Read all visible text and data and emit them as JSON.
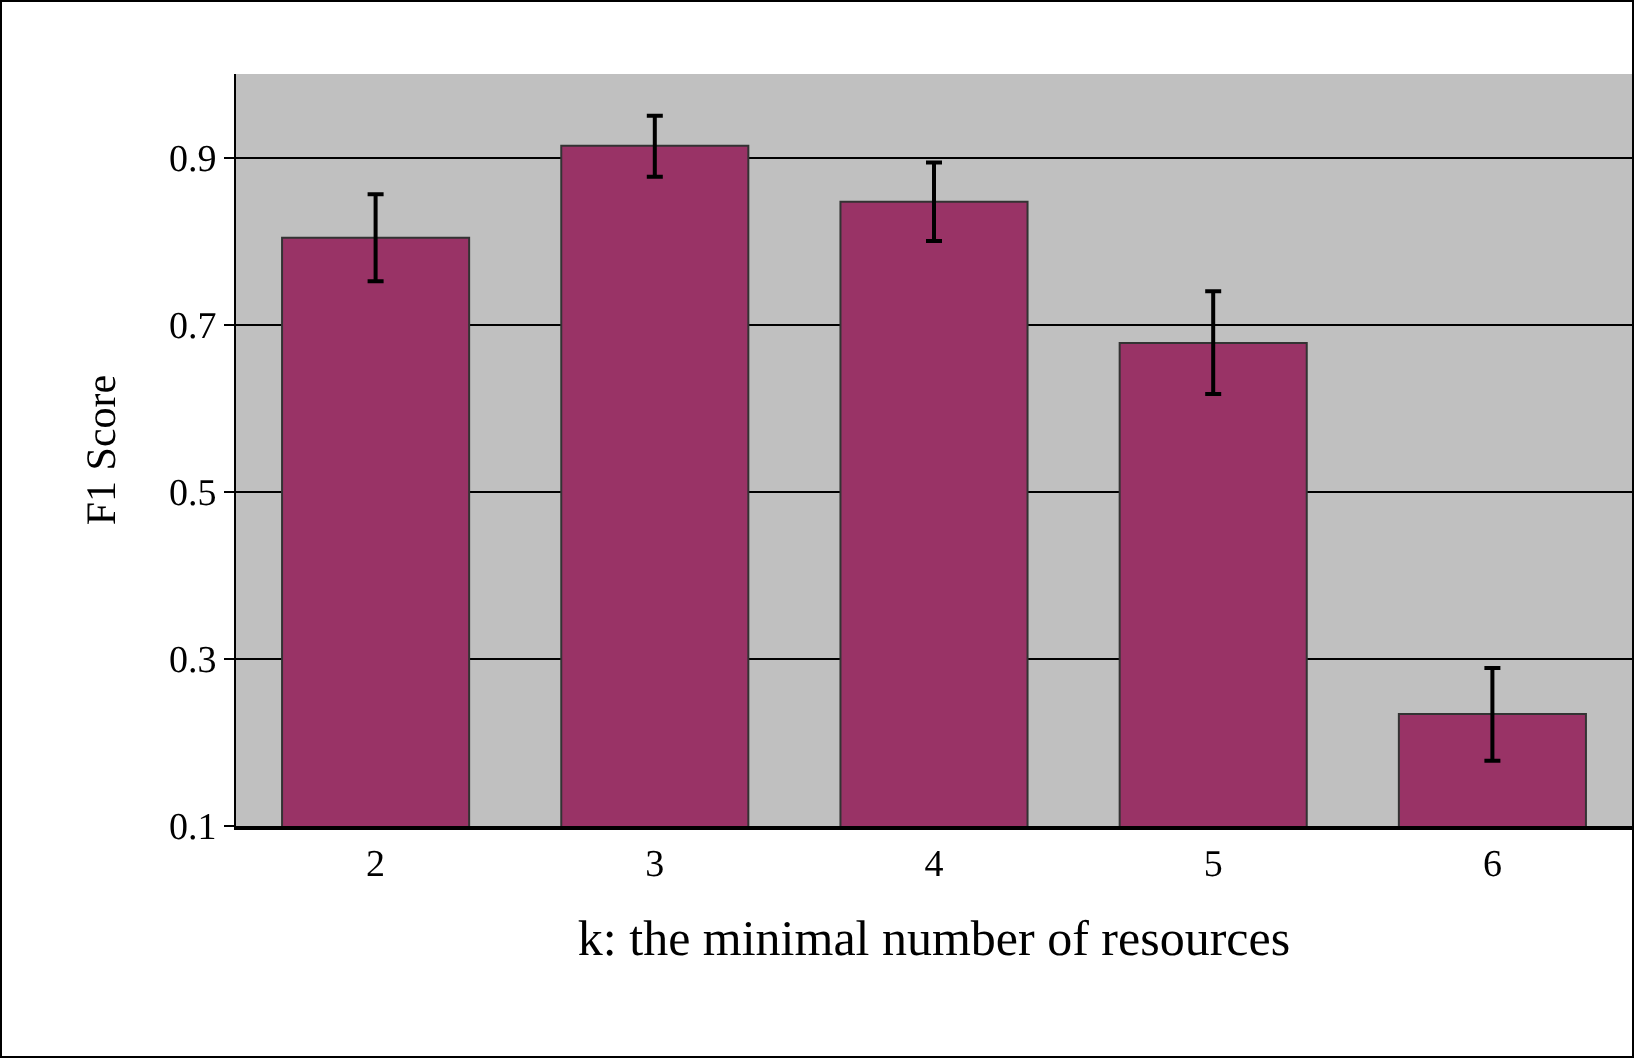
{
  "chart_data": {
    "type": "bar",
    "xlabel": "k: the minimal number of resources",
    "ylabel": "F1 Score",
    "categories": [
      "2",
      "3",
      "4",
      "5",
      "6"
    ],
    "values": [
      0.804,
      0.914,
      0.847,
      0.678,
      0.234
    ],
    "errors": [
      [
        0.752,
        0.856
      ],
      [
        0.877,
        0.95
      ],
      [
        0.8,
        0.894
      ],
      [
        0.617,
        0.74
      ],
      [
        0.178,
        0.289
      ]
    ],
    "color": "#993366",
    "ylim": [
      0.1,
      1.0
    ],
    "yticks": [
      0.1,
      0.3,
      0.5,
      0.7,
      0.9
    ],
    "grid": "y"
  }
}
